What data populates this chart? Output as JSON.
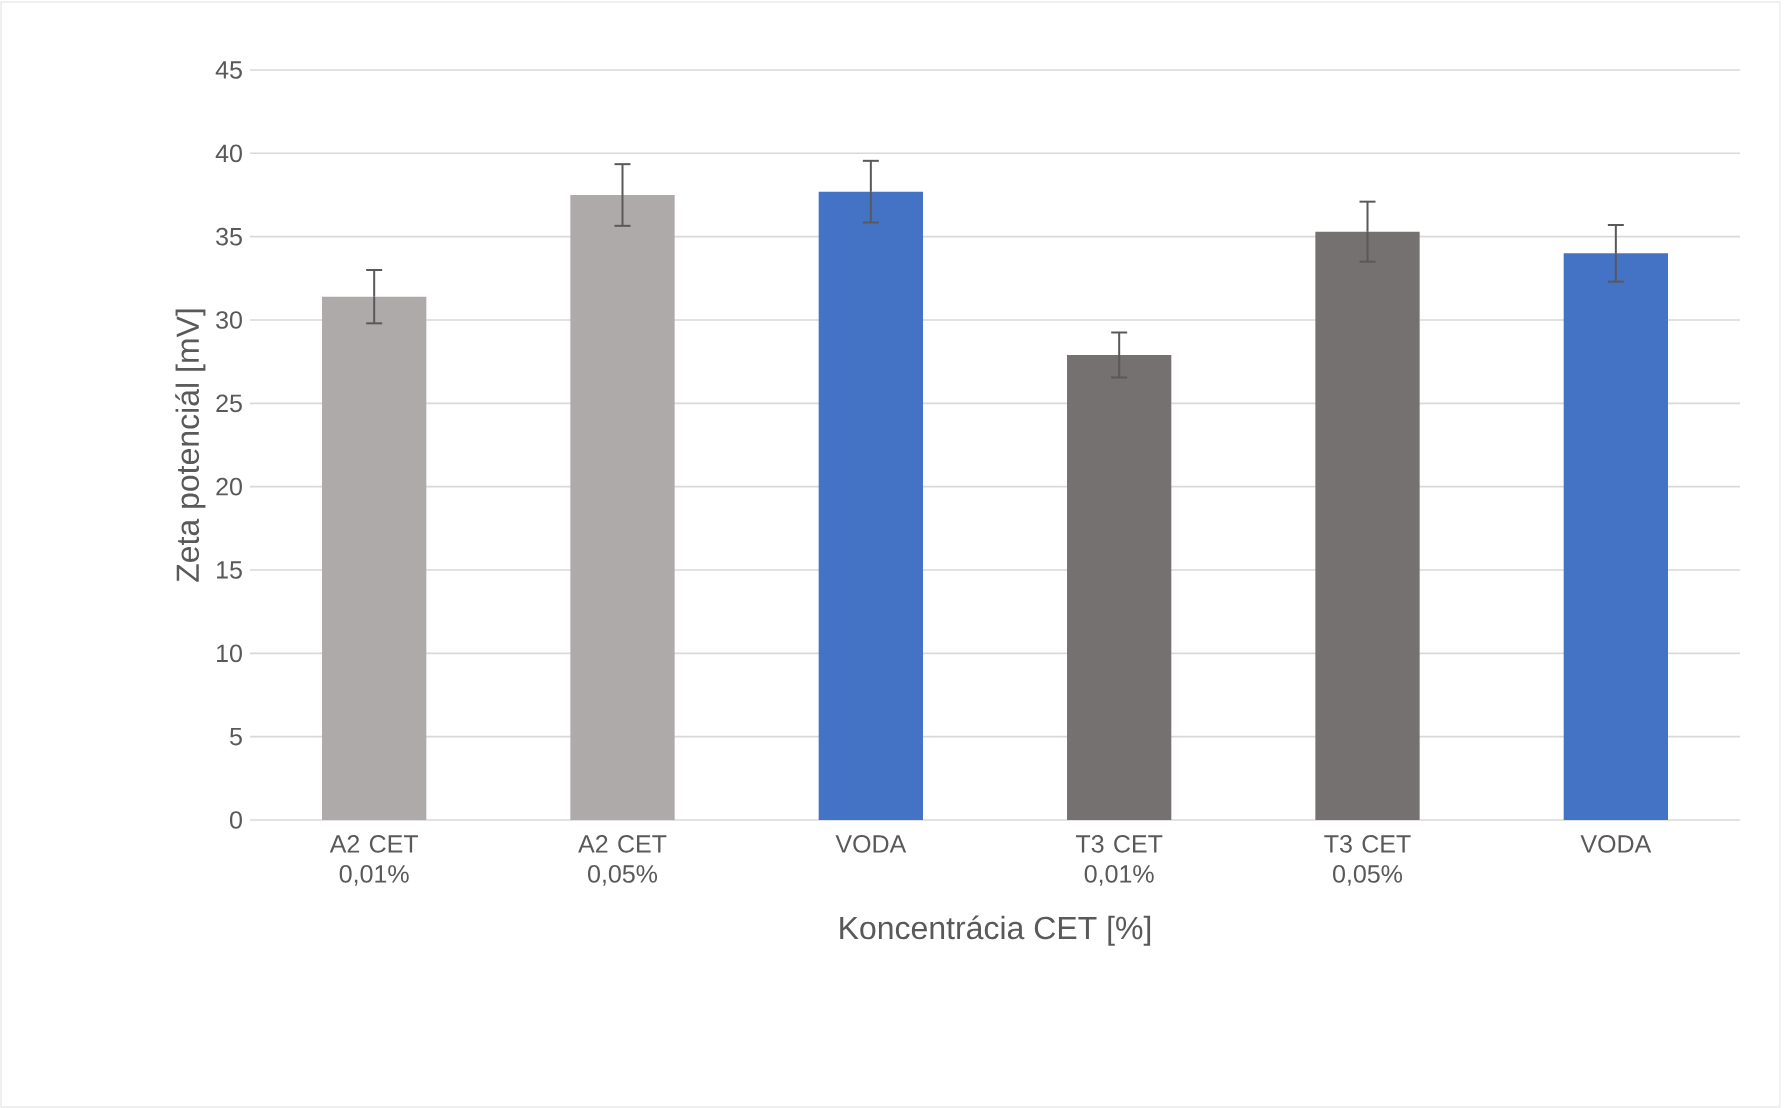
{
  "chart_data": {
    "type": "bar",
    "xlabel": "Koncentrácia CET [%]",
    "ylabel": "Zeta potenciál [mV]",
    "categories": [
      "A2 CET 0,01%",
      "A2 CET 0,05%",
      "VODA",
      "T3 CET 0,01%",
      "T3 CET 0,05%",
      "VODA"
    ],
    "values": [
      31.4,
      37.5,
      37.7,
      27.9,
      35.3,
      34.0
    ],
    "errors": [
      1.6,
      1.85,
      1.85,
      1.35,
      1.8,
      1.7
    ],
    "colors": [
      "#aeaaaa",
      "#aeaaaa",
      "#4472c4",
      "#767171",
      "#767171",
      "#4472c4"
    ],
    "ylim": [
      0,
      45
    ],
    "yticks": [
      0,
      5,
      10,
      15,
      20,
      25,
      30,
      35,
      40,
      45
    ],
    "grid": "y"
  }
}
